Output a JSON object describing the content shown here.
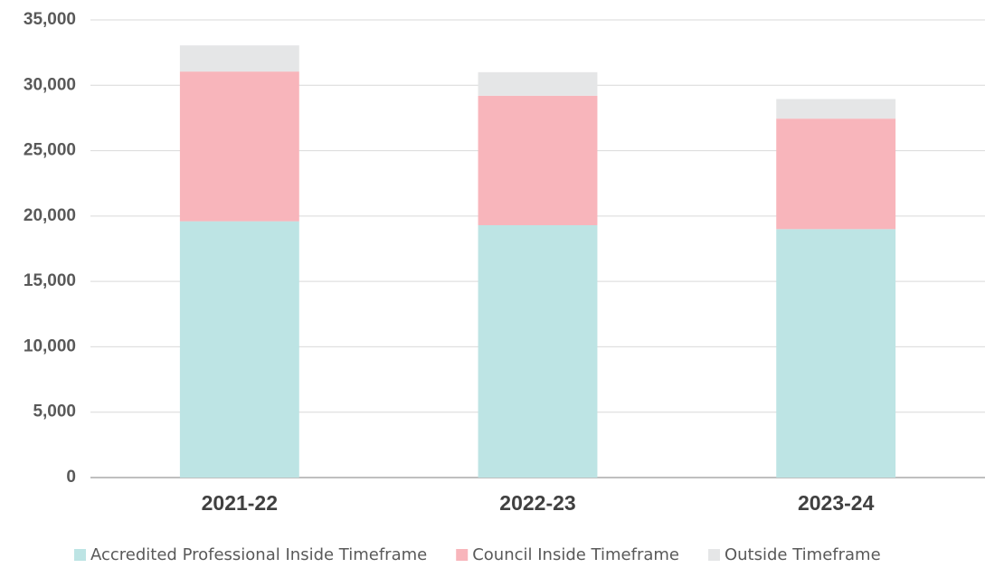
{
  "chart_data": {
    "type": "stacked_bar",
    "categories": [
      "2021-22",
      "2022-23",
      "2023-24"
    ],
    "series": [
      {
        "name": "Accredited Professional Inside Timeframe",
        "color": "#bde4e4",
        "values": [
          19600,
          19300,
          19000
        ]
      },
      {
        "name": "Council Inside Timeframe",
        "color": "#f8b5bb",
        "values": [
          11450,
          9900,
          8450
        ]
      },
      {
        "name": "Outside Timeframe",
        "color": "#e5e6e7",
        "values": [
          2000,
          1800,
          1500
        ]
      }
    ],
    "ylim": [
      0,
      35000
    ],
    "yticks": [
      0,
      {
        "value": 5000,
        "label": "5,000"
      },
      {
        "value": 10000,
        "label": "10,000"
      },
      {
        "value": 15000,
        "label": "15,000"
      },
      {
        "value": 20000,
        "label": "20,000"
      },
      {
        "value": 25000,
        "label": "25,000"
      },
      {
        "value": 30000,
        "label": "30,000"
      },
      {
        "value": 35000,
        "label": "35,000"
      }
    ],
    "grid": true,
    "legend": "bottom"
  }
}
